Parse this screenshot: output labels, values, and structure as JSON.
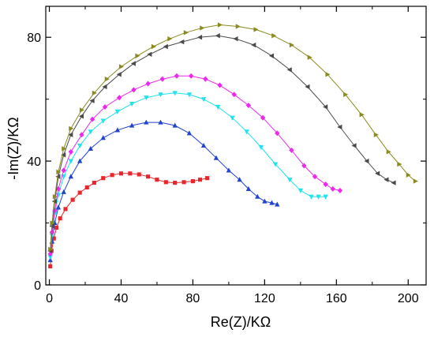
{
  "chart_data": {
    "type": "scatter",
    "title": "",
    "xlabel": "Re(Z)/KΩ",
    "ylabel": "-Im(Z)/KΩ",
    "xlim": [
      -2,
      210
    ],
    "ylim": [
      0,
      90
    ],
    "xticks": [
      0,
      40,
      80,
      120,
      160,
      200
    ],
    "xtick_labels": [
      "0",
      "40",
      "80",
      "120",
      "160",
      "200"
    ],
    "yticks": [
      0,
      40,
      80
    ],
    "ytick_labels": [
      "0",
      "40",
      "80"
    ],
    "grid": false,
    "legend": "none",
    "series": [
      {
        "color": "#e8262b",
        "marker": "square",
        "x": [
          0.5,
          1.2,
          2.5,
          4,
          6,
          9,
          13,
          17,
          21,
          25,
          30,
          35,
          40,
          45,
          50,
          55,
          60,
          65,
          70,
          75,
          80,
          84,
          88
        ],
        "y": [
          6,
          11,
          15,
          18.5,
          21.5,
          24.5,
          27.5,
          29.8,
          31.5,
          33,
          34.5,
          35.5,
          36,
          36,
          35.7,
          35,
          34,
          33.2,
          33,
          33.2,
          33.5,
          34,
          34.5
        ]
      },
      {
        "color": "#2043d0",
        "marker": "triangle-up",
        "x": [
          0.5,
          1.5,
          3,
          5,
          8,
          12,
          17,
          23,
          30,
          38,
          46,
          54,
          62,
          70,
          78,
          86,
          93,
          100,
          106,
          111,
          116,
          120,
          124,
          127
        ],
        "y": [
          8,
          14,
          20,
          25,
          30,
          35,
          40,
          44,
          47.5,
          50,
          51.5,
          52.5,
          52.5,
          51.5,
          49,
          45,
          41,
          37,
          34,
          31,
          28.5,
          27,
          26.5,
          26
        ]
      },
      {
        "color": "#1fe3ee",
        "marker": "triangle-down",
        "x": [
          0.5,
          1.5,
          3,
          5,
          8,
          12,
          17,
          23,
          30,
          38,
          46,
          54,
          62,
          70,
          78,
          86,
          94,
          102,
          110,
          118,
          126,
          134,
          140,
          146,
          150,
          154
        ],
        "y": [
          9,
          16,
          23,
          29,
          35,
          40,
          45,
          49.5,
          53,
          56,
          58.5,
          60.5,
          61.5,
          62,
          61.5,
          60,
          57.5,
          54,
          49.5,
          44.5,
          39,
          34,
          30.5,
          28.5,
          28.5,
          28.5
        ]
      },
      {
        "color": "#ee28ee",
        "marker": "diamond",
        "x": [
          0.5,
          1.5,
          3,
          5,
          8,
          12,
          18,
          24,
          31,
          39,
          47,
          55,
          63,
          71,
          79,
          87,
          95,
          103,
          111,
          119,
          127,
          135,
          142,
          148,
          154,
          158,
          162
        ],
        "y": [
          10,
          17,
          24,
          31,
          37,
          43,
          48.5,
          53.5,
          57.5,
          60.5,
          63,
          65,
          66.5,
          67.5,
          67.5,
          66.5,
          64.5,
          61.5,
          58,
          54,
          49,
          43.5,
          38.5,
          35,
          32.5,
          31,
          30.5
        ]
      },
      {
        "color": "#4a4a4a",
        "marker": "triangle-left",
        "x": [
          0.5,
          1.5,
          3,
          5,
          8,
          12,
          18,
          24,
          31,
          39,
          47,
          56,
          65,
          74,
          84,
          94,
          104,
          114,
          124,
          134,
          144,
          154,
          162,
          170,
          177,
          183,
          188,
          192
        ],
        "y": [
          11,
          19,
          27,
          35,
          42,
          48.5,
          54.5,
          59.5,
          64,
          68,
          71.5,
          74.5,
          77,
          78.5,
          80,
          80.5,
          79.5,
          77.5,
          74,
          69.5,
          64,
          57.5,
          51,
          45,
          40,
          36,
          34,
          33
        ]
      },
      {
        "color": "#8a8a1e",
        "marker": "triangle-right",
        "x": [
          0.5,
          1.5,
          3,
          5,
          8,
          12,
          18,
          25,
          32,
          40,
          49,
          58,
          67,
          76,
          85,
          95,
          105,
          115,
          125,
          135,
          145,
          155,
          165,
          174,
          182,
          189,
          195,
          200,
          204
        ],
        "y": [
          11.5,
          20,
          28.5,
          36.5,
          44,
          50.5,
          56.5,
          62,
          66.5,
          70.5,
          74,
          77,
          79.5,
          81.5,
          83,
          84,
          83.5,
          82.5,
          80.5,
          77.5,
          73.5,
          68,
          61.5,
          55,
          48.5,
          43,
          39,
          35.5,
          33.5
        ]
      }
    ]
  }
}
